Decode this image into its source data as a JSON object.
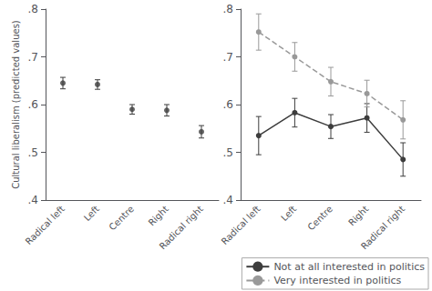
{
  "chart_data": [
    {
      "type": "scatter",
      "categories": [
        "Radical left",
        "Left",
        "Centre",
        "Right",
        "Radical right"
      ],
      "values": [
        0.645,
        0.642,
        0.59,
        0.588,
        0.543
      ],
      "yerr": [
        0.012,
        0.01,
        0.01,
        0.012,
        0.013
      ],
      "color": "#3d3d3d",
      "marker": "circle",
      "ylabel": "Cultural liberalism (predicted values)",
      "ylim": [
        0.4,
        0.8
      ],
      "yticks": [
        {
          "value": 0.4,
          "label": ".4"
        },
        {
          "value": 0.5,
          "label": ".5"
        },
        {
          "value": 0.6,
          "label": ".6"
        },
        {
          "value": 0.7,
          "label": ".7"
        },
        {
          "value": 0.8,
          "label": ".8"
        }
      ],
      "grid": false
    },
    {
      "type": "line",
      "categories": [
        "Radical left",
        "Left",
        "Centre",
        "Right",
        "Radical right"
      ],
      "series": [
        {
          "name": "Not at all interested in politics",
          "color": "#3d3d3d",
          "marker": "circle",
          "line_style": "solid",
          "values": [
            0.535,
            0.583,
            0.554,
            0.572,
            0.485
          ],
          "yerr": [
            0.04,
            0.03,
            0.025,
            0.03,
            0.035
          ]
        },
        {
          "name": "Very interested in politics",
          "color": "#999999",
          "marker": "circle",
          "line_style": "dashed",
          "values": [
            0.752,
            0.7,
            0.648,
            0.623,
            0.568
          ],
          "yerr": [
            0.038,
            0.03,
            0.03,
            0.028,
            0.04
          ]
        }
      ],
      "ylim": [
        0.4,
        0.8
      ],
      "yticks": [
        {
          "value": 0.4,
          "label": ".4"
        },
        {
          "value": 0.5,
          "label": ".5"
        },
        {
          "value": 0.6,
          "label": ".6"
        },
        {
          "value": 0.7,
          "label": ".7"
        },
        {
          "value": 0.8,
          "label": ".8"
        }
      ],
      "grid": false,
      "legend": "lower right"
    }
  ]
}
